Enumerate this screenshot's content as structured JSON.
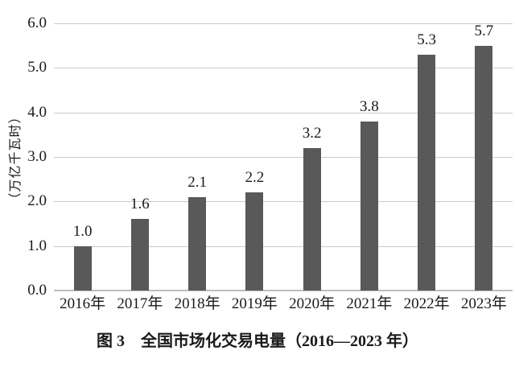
{
  "chart_data": {
    "type": "bar",
    "title": "图 3　全国市场化交易电量（2016—2023 年）",
    "ylabel": "（万亿千瓦时）",
    "xlabel": "",
    "categories": [
      "2016年",
      "2017年",
      "2018年",
      "2019年",
      "2020年",
      "2021年",
      "2022年",
      "2023年"
    ],
    "values": [
      1.0,
      1.6,
      2.1,
      2.2,
      3.2,
      3.8,
      5.3,
      5.7
    ],
    "value_labels": [
      "1.0",
      "1.6",
      "2.1",
      "2.2",
      "3.2",
      "3.8",
      "5.3",
      "5.7"
    ],
    "ytick_labels": [
      "6.0",
      "5.0",
      "4.0",
      "3.0",
      "2.0",
      "1.0",
      "0.0"
    ],
    "ylim": [
      0,
      6.0
    ],
    "grid": "horizontal",
    "legend": "none",
    "bar_color": "#595959",
    "gridline_color": "#cacaca",
    "axis_line_color": "#bdbdbd",
    "text_color": "#1a1a1a"
  }
}
